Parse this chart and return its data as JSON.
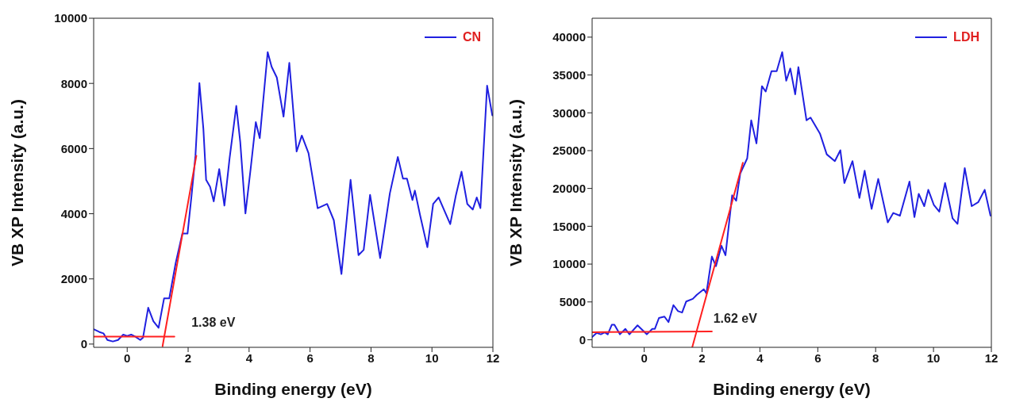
{
  "chart_data": [
    {
      "type": "line",
      "xlabel": "Binding energy (eV)",
      "ylabel": "VB XP Intensity (a.u.)",
      "xlim": [
        -1.1,
        12
      ],
      "xticks": [
        0,
        2,
        4,
        6,
        8,
        10,
        12
      ],
      "ylim": [
        -100,
        10000
      ],
      "yticks": [
        0,
        2000,
        4000,
        6000,
        8000,
        10000
      ],
      "legend": "top right",
      "series": [
        {
          "name": "CN",
          "color": "#2020e0",
          "x": [
            -1.1,
            -0.91,
            -0.78,
            -0.65,
            -0.47,
            -0.3,
            -0.13,
            0,
            0.13,
            0.26,
            0.43,
            0.52,
            0.69,
            0.86,
            1.03,
            1.21,
            1.38,
            1.59,
            1.81,
            1.98,
            2.11,
            2.24,
            2.37,
            2.5,
            2.59,
            2.72,
            2.84,
            3.02,
            3.19,
            3.36,
            3.58,
            3.71,
            3.88,
            4.05,
            4.22,
            4.35,
            4.61,
            4.74,
            4.91,
            5.13,
            5.32,
            5.56,
            5.73,
            5.95,
            6.25,
            6.56,
            6.78,
            7.03,
            7.33,
            7.59,
            7.76,
            7.97,
            8.3,
            8.62,
            8.88,
            9.05,
            9.18,
            9.36,
            9.44,
            9.61,
            9.85,
            10.04,
            10.22,
            10.6,
            10.78,
            10.97,
            11.16,
            11.34,
            11.47,
            11.59,
            11.81,
            11.98
          ],
          "values": [
            455,
            370,
            330,
            125,
            80,
            125,
            290,
            250,
            290,
            230,
            125,
            200,
            1115,
            700,
            500,
            1400,
            1400,
            2480,
            3390,
            3390,
            4540,
            5780,
            8010,
            6610,
            5040,
            4830,
            4380,
            5370,
            4250,
            5700,
            7310,
            6200,
            4010,
            5370,
            6810,
            6320,
            8960,
            8510,
            8180,
            6980,
            8630,
            5910,
            6400,
            5860,
            4170,
            4300,
            3800,
            2150,
            5040,
            2730,
            2890,
            4580,
            2640,
            4630,
            5740,
            5080,
            5080,
            4420,
            4710,
            3960,
            2970,
            4300,
            4500,
            3680,
            4540,
            5290,
            4300,
            4130,
            4500,
            4170,
            7930,
            7020
          ]
        },
        {
          "type": "line",
          "color": "#ff2020",
          "x": [
            -1.1,
            1.55
          ],
          "values": [
            230,
            230
          ]
        },
        {
          "type": "line",
          "color": "#ff2020",
          "x": [
            1.16,
            2.27
          ],
          "values": [
            -70,
            5780
          ]
        }
      ],
      "annotations": [
        {
          "text": "1.38 eV",
          "x": 1.38,
          "y": 230
        }
      ]
    },
    {
      "type": "line",
      "xlabel": "Binding energy (eV)",
      "ylabel": "VB XP Intensity (a.u.)",
      "xlim": [
        -1.8,
        12
      ],
      "xticks": [
        0,
        2,
        4,
        6,
        8,
        10,
        12
      ],
      "ylim": [
        -1000,
        42500
      ],
      "yticks": [
        0,
        5000,
        10000,
        15000,
        20000,
        25000,
        30000,
        35000,
        40000
      ],
      "legend": "top right",
      "series": [
        {
          "name": "LDH",
          "color": "#2020e0",
          "x": [
            -1.8,
            -1.64,
            -1.5,
            -1.36,
            -1.26,
            -1.12,
            -1.03,
            -0.84,
            -0.65,
            -0.51,
            -0.23,
            0.09,
            0.28,
            0.37,
            0.51,
            0.7,
            0.84,
            1.01,
            1.17,
            1.31,
            1.45,
            1.68,
            1.82,
            2.06,
            2.15,
            2.34,
            2.48,
            2.67,
            2.81,
            3.04,
            3.18,
            3.32,
            3.56,
            3.7,
            3.88,
            4.07,
            4.2,
            4.4,
            4.58,
            4.77,
            4.91,
            5.05,
            5.22,
            5.33,
            5.61,
            5.75,
            6.08,
            6.31,
            6.59,
            6.78,
            6.92,
            7.2,
            7.44,
            7.62,
            7.86,
            8.09,
            8.42,
            8.61,
            8.84,
            9.17,
            9.34,
            9.49,
            9.68,
            9.82,
            10.01,
            10.2,
            10.4,
            10.66,
            10.83,
            11.08,
            11.32,
            11.55,
            11.77,
            11.97
          ],
          "values": [
            360,
            900,
            720,
            970,
            720,
            1980,
            1980,
            720,
            1440,
            720,
            1910,
            720,
            1440,
            1440,
            2880,
            3060,
            2340,
            4580,
            3780,
            3600,
            5050,
            5410,
            5950,
            6670,
            6130,
            10990,
            9730,
            12430,
            11170,
            19100,
            18380,
            21980,
            23970,
            29010,
            25950,
            33520,
            32800,
            35500,
            35500,
            38020,
            34240,
            35860,
            32440,
            36040,
            29010,
            29370,
            27210,
            24510,
            23610,
            25050,
            20720,
            23610,
            18740,
            22340,
            17300,
            21260,
            15500,
            16760,
            16400,
            20900,
            16220,
            19280,
            17660,
            19820,
            17840,
            16940,
            20720,
            16040,
            15320,
            22700,
            17660,
            18200,
            19820,
            16400
          ]
        },
        {
          "type": "line",
          "color": "#ff2020",
          "x": [
            -1.8,
            2.34
          ],
          "values": [
            1000,
            1100
          ]
        },
        {
          "type": "line",
          "color": "#ff2020",
          "x": [
            1.66,
            3.41
          ],
          "values": [
            -1000,
            23400
          ]
        }
      ],
      "annotations": [
        {
          "text": "1.62 eV",
          "x": 1.62,
          "y": 1000
        }
      ]
    }
  ]
}
